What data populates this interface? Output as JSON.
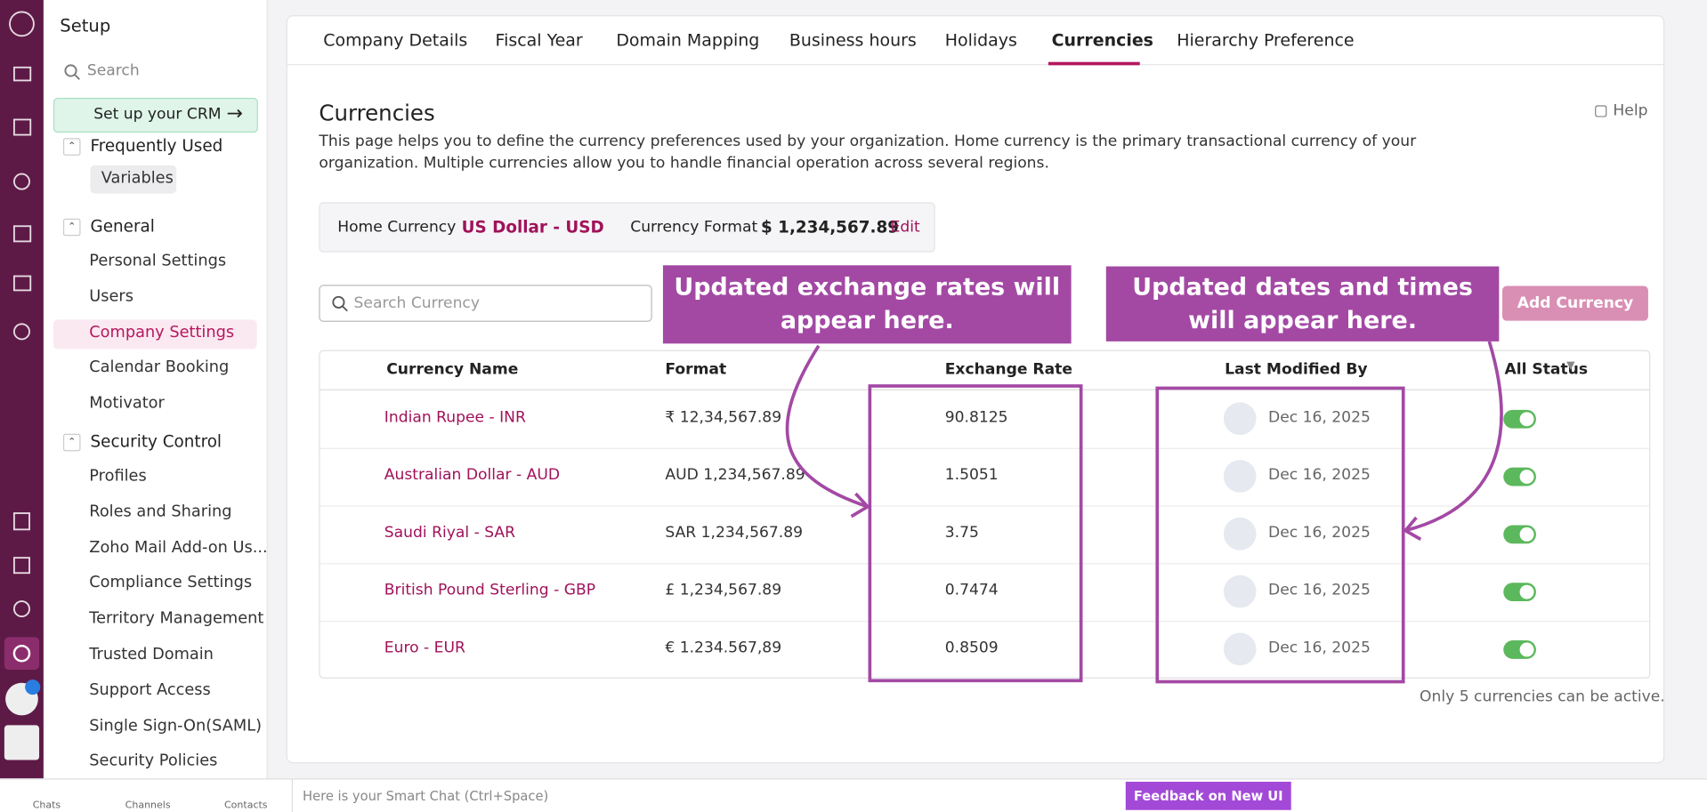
{
  "sidebar": {
    "title": "Setup",
    "search": "Search",
    "setup_crm": "Set up your CRM",
    "sections": [
      {
        "title": "Frequently Used",
        "items": [
          "Variables"
        ]
      },
      {
        "title": "General",
        "items": [
          "Personal Settings",
          "Users",
          "Company Settings",
          "Calendar Booking",
          "Motivator"
        ]
      },
      {
        "title": "Security Control",
        "items": [
          "Profiles",
          "Roles and Sharing",
          "Zoho Mail Add-on Us...",
          "Compliance Settings",
          "Territory Management",
          "Trusted Domain",
          "Support Access",
          "Single Sign-On(SAML)",
          "Security Policies"
        ]
      }
    ]
  },
  "tabs": [
    "Company Details",
    "Fiscal Year",
    "Domain Mapping",
    "Business hours",
    "Holidays",
    "Currencies",
    "Hierarchy Preference"
  ],
  "page": {
    "title": "Currencies",
    "help": "Help",
    "description": "This page helps you to define the currency preferences used by your organization. Home currency is the primary transactional currency of your organization. Multiple currencies allow you to handle financial operation across several regions."
  },
  "home_currency": {
    "label": "Home Currency",
    "value": "US Dollar - USD",
    "format_label": "Currency Format",
    "format_value": "$ 1,234,567.89",
    "edit": "Edit"
  },
  "search_placeholder": "Search Currency",
  "add_button": "Add Currency",
  "annotations": [
    "Updated exchange rates will appear here.",
    "Updated dates and times will appear here."
  ],
  "table": {
    "headers": [
      "Currency Name",
      "Format",
      "Exchange Rate",
      "Last Modified By",
      "All Status"
    ],
    "rows": [
      [
        "Indian Rupee - INR",
        "₹ 12,34,567.89",
        "90.8125",
        "Dec 16, 2025"
      ],
      [
        "Australian Dollar - AUD",
        "AUD 1,234,567.89",
        "1.5051",
        "Dec 16, 2025"
      ],
      [
        "Saudi Riyal - SAR",
        "SAR 1,234,567.89",
        "3.75",
        "Dec 16, 2025"
      ],
      [
        "British Pound Sterling - GBP",
        "£ 1,234,567.89",
        "0.7474",
        "Dec 16, 2025"
      ],
      [
        "Euro - EUR",
        "€ 1.234.567,89",
        "0.8509",
        "Dec 16, 2025"
      ]
    ]
  },
  "footnote": "Only 5 currencies can be active.",
  "bottom_bar": {
    "chats": "Chats",
    "channels": "Channels",
    "contacts": "Contacts",
    "smart_chat": "Here is your Smart Chat (Ctrl+Space)",
    "feedback": "Feedback on New UI"
  }
}
